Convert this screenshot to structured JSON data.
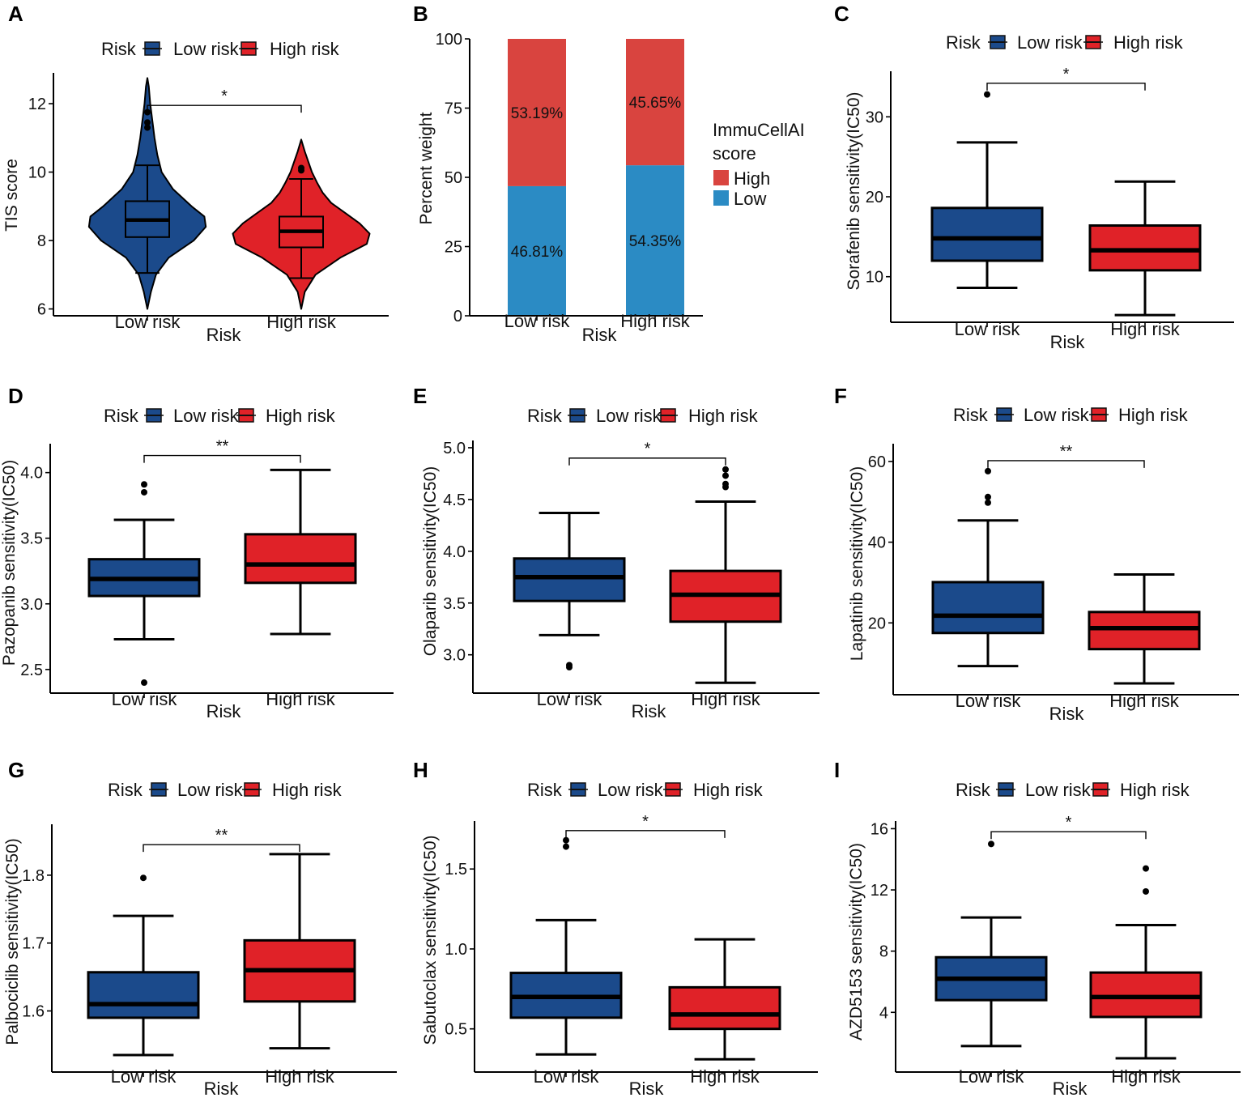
{
  "colors": {
    "low": "#1b4a8b",
    "high": "#e02228",
    "bar_high": "#d9443f",
    "bar_low": "#2b8bc4",
    "axis": "#000000"
  },
  "chart_data": [
    {
      "panel": "A",
      "type": "violin",
      "legend_title": "Risk",
      "legend_labels": [
        "Low risk",
        "High risk"
      ],
      "xlabel": "Risk",
      "ylabel": "TIS score",
      "categories": [
        "Low risk",
        "High risk"
      ],
      "ylim": [
        5.8,
        12.9
      ],
      "yticks": [
        6,
        8,
        10,
        12
      ],
      "ytick_labels": [
        "6",
        "8",
        "10",
        "12"
      ],
      "significance": "*",
      "sig_y": 11.95,
      "boxes": [
        {
          "q1": 8.1,
          "median": 8.6,
          "q3": 9.15,
          "wmin": 7.05,
          "wmax": 10.2,
          "outliers": [
            11.3,
            11.45,
            11.75
          ]
        },
        {
          "q1": 7.8,
          "median": 8.27,
          "q3": 8.7,
          "wmin": 6.9,
          "wmax": 9.8,
          "outliers": [
            10.05,
            10.12
          ]
        }
      ],
      "violins": [
        {
          "min": 6.0,
          "max": 12.75,
          "profile": [
            [
              6.0,
              0
            ],
            [
              6.5,
              0.05
            ],
            [
              7.0,
              0.12
            ],
            [
              7.5,
              0.3
            ],
            [
              8.0,
              0.65
            ],
            [
              8.4,
              0.82
            ],
            [
              8.7,
              0.8
            ],
            [
              9.0,
              0.62
            ],
            [
              9.5,
              0.36
            ],
            [
              10.0,
              0.2
            ],
            [
              10.5,
              0.14
            ],
            [
              11.0,
              0.1
            ],
            [
              11.5,
              0.07
            ],
            [
              12.0,
              0.04
            ],
            [
              12.5,
              0.02
            ],
            [
              12.75,
              0
            ]
          ]
        },
        {
          "min": 6.0,
          "max": 10.95,
          "profile": [
            [
              6.0,
              0
            ],
            [
              6.5,
              0.05
            ],
            [
              7.0,
              0.2
            ],
            [
              7.5,
              0.55
            ],
            [
              7.9,
              0.92
            ],
            [
              8.2,
              0.96
            ],
            [
              8.5,
              0.82
            ],
            [
              8.8,
              0.62
            ],
            [
              9.1,
              0.42
            ],
            [
              9.4,
              0.3
            ],
            [
              9.7,
              0.22
            ],
            [
              10.0,
              0.15
            ],
            [
              10.3,
              0.1
            ],
            [
              10.6,
              0.05
            ],
            [
              10.95,
              0
            ]
          ]
        }
      ]
    },
    {
      "panel": "B",
      "type": "bar",
      "stacked": true,
      "xlabel": "Risk",
      "ylabel": "Percent weight",
      "categories": [
        "Low risk",
        "High risk"
      ],
      "ylim": [
        0,
        100
      ],
      "yticks": [
        0,
        25,
        50,
        75,
        100
      ],
      "ytick_labels": [
        "0",
        "25",
        "50",
        "75",
        "100"
      ],
      "legend_title": "ImmuCellAI",
      "legend_title_2": "score",
      "legend_labels": [
        "High",
        "Low"
      ],
      "series": [
        {
          "name": "Low",
          "values": [
            46.81,
            54.35
          ],
          "labels": [
            "46.81%",
            "54.35%"
          ]
        },
        {
          "name": "High",
          "values": [
            53.19,
            45.65
          ],
          "labels": [
            "53.19%",
            "45.65%"
          ]
        }
      ]
    },
    {
      "panel": "C",
      "type": "box",
      "legend_title": "Risk",
      "legend_labels": [
        "Low risk",
        "High risk"
      ],
      "xlabel": "Risk",
      "ylabel": "Sorafenib sensitivity(IC50)",
      "categories": [
        "Low risk",
        "High risk"
      ],
      "ylim": [
        4.3,
        35.7
      ],
      "yticks": [
        10,
        20,
        30
      ],
      "ytick_labels": [
        "10",
        "20",
        "30"
      ],
      "significance": "*",
      "sig_y": 34.2,
      "boxes": [
        {
          "q1": 12.0,
          "median": 14.8,
          "q3": 18.6,
          "wmin": 8.6,
          "wmax": 26.8,
          "outliers": [
            32.8
          ]
        },
        {
          "q1": 10.8,
          "median": 13.3,
          "q3": 16.4,
          "wmin": 5.2,
          "wmax": 21.9,
          "outliers": []
        }
      ]
    },
    {
      "panel": "D",
      "type": "box",
      "legend_title": "Risk",
      "legend_labels": [
        "Low risk",
        "High risk"
      ],
      "xlabel": "Risk",
      "ylabel": "Pazopanib sensitivity(IC50)",
      "categories": [
        "Low risk",
        "High risk"
      ],
      "ylim": [
        2.32,
        4.22
      ],
      "yticks": [
        2.5,
        3.0,
        3.5,
        4.0
      ],
      "ytick_labels": [
        "2.5",
        "3.0",
        "3.5",
        "4.0"
      ],
      "significance": "**",
      "sig_y": 4.13,
      "boxes": [
        {
          "q1": 3.06,
          "median": 3.19,
          "q3": 3.34,
          "wmin": 2.73,
          "wmax": 3.64,
          "outliers": [
            3.85,
            3.91,
            2.4
          ]
        },
        {
          "q1": 3.16,
          "median": 3.3,
          "q3": 3.53,
          "wmin": 2.77,
          "wmax": 4.02,
          "outliers": []
        }
      ]
    },
    {
      "panel": "E",
      "type": "box",
      "legend_title": "Risk",
      "legend_labels": [
        "Low risk",
        "High risk"
      ],
      "xlabel": "Risk",
      "ylabel": "Olaparib sensitivity(IC50)",
      "categories": [
        "Low risk",
        "High risk"
      ],
      "ylim": [
        2.63,
        5.07
      ],
      "yticks": [
        3.0,
        3.5,
        4.0,
        4.5,
        5.0
      ],
      "ytick_labels": [
        "3.0",
        "3.5",
        "4.0",
        "4.5",
        "5.0"
      ],
      "significance": "*",
      "sig_y": 4.9,
      "boxes": [
        {
          "q1": 3.52,
          "median": 3.75,
          "q3": 3.93,
          "wmin": 3.19,
          "wmax": 4.37,
          "outliers": [
            2.88,
            2.9
          ]
        },
        {
          "q1": 3.32,
          "median": 3.58,
          "q3": 3.81,
          "wmin": 2.73,
          "wmax": 4.48,
          "outliers": [
            4.62,
            4.65,
            4.73,
            4.79
          ]
        }
      ]
    },
    {
      "panel": "F",
      "type": "box",
      "legend_title": "Risk",
      "legend_labels": [
        "Low risk",
        "High risk"
      ],
      "xlabel": "Risk",
      "ylabel": "Lapatinib sensitivity(IC50)",
      "categories": [
        "Low risk",
        "High risk"
      ],
      "ylim": [
        2.2,
        64.4
      ],
      "yticks": [
        20,
        40,
        60
      ],
      "ytick_labels": [
        "20",
        "40",
        "60"
      ],
      "significance": "**",
      "sig_y": 60.2,
      "boxes": [
        {
          "q1": 17.5,
          "median": 21.8,
          "q3": 30.1,
          "wmin": 9.3,
          "wmax": 45.4,
          "outliers": [
            49.8,
            51.2,
            57.6
          ]
        },
        {
          "q1": 13.5,
          "median": 18.7,
          "q3": 22.7,
          "wmin": 5.0,
          "wmax": 32.0,
          "outliers": []
        }
      ]
    },
    {
      "panel": "G",
      "type": "box",
      "legend_title": "Risk",
      "legend_labels": [
        "Low risk",
        "High risk"
      ],
      "xlabel": "Risk",
      "ylabel": "Palbociclib sensitivity(IC50)",
      "categories": [
        "Low risk",
        "High risk"
      ],
      "ylim": [
        1.51,
        1.875
      ],
      "yticks": [
        1.6,
        1.7,
        1.8
      ],
      "ytick_labels": [
        "1.6",
        "1.7",
        "1.8"
      ],
      "significance": "**",
      "sig_y": 1.845,
      "boxes": [
        {
          "q1": 1.59,
          "median": 1.61,
          "q3": 1.657,
          "wmin": 1.535,
          "wmax": 1.74,
          "outliers": [
            1.796
          ]
        },
        {
          "q1": 1.614,
          "median": 1.66,
          "q3": 1.704,
          "wmin": 1.545,
          "wmax": 1.831,
          "outliers": []
        }
      ]
    },
    {
      "panel": "H",
      "type": "box",
      "legend_title": "Risk",
      "legend_labels": [
        "Low risk",
        "High risk"
      ],
      "xlabel": "Risk",
      "ylabel": "Sabutoclax sensitivity(IC50)",
      "categories": [
        "Low risk",
        "High risk"
      ],
      "ylim": [
        0.23,
        1.8
      ],
      "yticks": [
        0.5,
        1.0,
        1.5
      ],
      "ytick_labels": [
        "0.5",
        "1.0",
        "1.5"
      ],
      "significance": "*",
      "sig_y": 1.74,
      "boxes": [
        {
          "q1": 0.57,
          "median": 0.7,
          "q3": 0.85,
          "wmin": 0.34,
          "wmax": 1.18,
          "outliers": [
            1.64,
            1.68
          ]
        },
        {
          "q1": 0.5,
          "median": 0.59,
          "q3": 0.76,
          "wmin": 0.31,
          "wmax": 1.06,
          "outliers": []
        }
      ]
    },
    {
      "panel": "I",
      "type": "box",
      "legend_title": "Risk",
      "legend_labels": [
        "Low risk",
        "High risk"
      ],
      "xlabel": "Risk",
      "ylabel": "AZD5153 sensitivity(IC50)",
      "categories": [
        "Low risk",
        "High risk"
      ],
      "ylim": [
        0.1,
        16.5
      ],
      "yticks": [
        4,
        8,
        12,
        16
      ],
      "ytick_labels": [
        "4",
        "8",
        "12",
        "16"
      ],
      "significance": "*",
      "sig_y": 15.8,
      "boxes": [
        {
          "q1": 4.8,
          "median": 6.2,
          "q3": 7.6,
          "wmin": 1.8,
          "wmax": 10.2,
          "outliers": [
            15.0
          ]
        },
        {
          "q1": 3.7,
          "median": 5.0,
          "q3": 6.6,
          "wmin": 1.0,
          "wmax": 9.7,
          "outliers": [
            11.9,
            13.4
          ]
        }
      ]
    }
  ]
}
